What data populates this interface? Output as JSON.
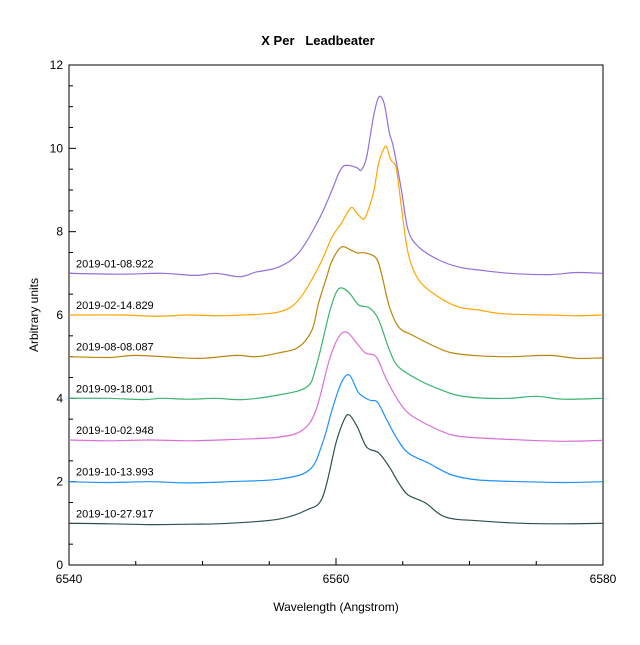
{
  "chart_data": {
    "type": "line",
    "title": "X Per   Leadbeater",
    "xlabel": "Wavelength (Angstrom)",
    "ylabel": "Arbitrary units",
    "xlim": [
      6540,
      6580
    ],
    "ylim": [
      0,
      12
    ],
    "xticks": [
      "6540",
      "6560",
      "6580"
    ],
    "yticks": [
      "0",
      "2",
      "4",
      "6",
      "8",
      "10",
      "12"
    ],
    "grid": false,
    "legend": "inline labels at left above each spectrum",
    "series": [
      {
        "name": "2019-01-08.922",
        "color": "#9370db",
        "points": [
          [
            6540,
            7.0
          ],
          [
            6544,
            6.98
          ],
          [
            6547,
            7.0
          ],
          [
            6549.5,
            6.95
          ],
          [
            6551,
            7.0
          ],
          [
            6552.8,
            6.92
          ],
          [
            6554,
            7.03
          ],
          [
            6555.7,
            7.15
          ],
          [
            6557.2,
            7.49
          ],
          [
            6558.7,
            8.28
          ],
          [
            6559.7,
            9.0
          ],
          [
            6560.2,
            9.4
          ],
          [
            6560.6,
            9.58
          ],
          [
            6561.1,
            9.58
          ],
          [
            6561.6,
            9.53
          ],
          [
            6561.9,
            9.48
          ],
          [
            6562.3,
            9.8
          ],
          [
            6562.8,
            10.75
          ],
          [
            6563.2,
            11.23
          ],
          [
            6563.6,
            11.08
          ],
          [
            6564.0,
            10.37
          ],
          [
            6564.3,
            10.03
          ],
          [
            6564.9,
            9.0
          ],
          [
            6565.4,
            8.04
          ],
          [
            6566.2,
            7.63
          ],
          [
            6567.7,
            7.32
          ],
          [
            6569.2,
            7.15
          ],
          [
            6570.7,
            7.08
          ],
          [
            6573,
            7.0
          ],
          [
            6576,
            6.97
          ],
          [
            6578,
            7.02
          ],
          [
            6580,
            7.0
          ]
        ]
      },
      {
        "name": "2019-02-14.829",
        "color": "#ffa500",
        "points": [
          [
            6540,
            6.0
          ],
          [
            6544,
            6.0
          ],
          [
            6546.5,
            5.97
          ],
          [
            6549,
            6.0
          ],
          [
            6551,
            5.98
          ],
          [
            6553,
            6.0
          ],
          [
            6555.7,
            6.07
          ],
          [
            6557.2,
            6.36
          ],
          [
            6558.7,
            7.15
          ],
          [
            6559.7,
            7.87
          ],
          [
            6560.4,
            8.2
          ],
          [
            6561.1,
            8.57
          ],
          [
            6561.5,
            8.47
          ],
          [
            6561.9,
            8.33
          ],
          [
            6562.2,
            8.35
          ],
          [
            6562.8,
            8.93
          ],
          [
            6563.2,
            9.65
          ],
          [
            6563.6,
            10.0
          ],
          [
            6563.8,
            10.03
          ],
          [
            6564.1,
            9.72
          ],
          [
            6564.5,
            9.53
          ],
          [
            6564.9,
            8.6
          ],
          [
            6565.4,
            7.49
          ],
          [
            6566.2,
            6.84
          ],
          [
            6567.7,
            6.43
          ],
          [
            6569.2,
            6.19
          ],
          [
            6570.7,
            6.12
          ],
          [
            6572.5,
            6.03
          ],
          [
            6576,
            6.0
          ],
          [
            6578,
            5.98
          ],
          [
            6580,
            6.0
          ]
        ]
      },
      {
        "name": "2019-08-08.087",
        "color": "#b8860b",
        "points": [
          [
            6540,
            5.0
          ],
          [
            6543,
            4.98
          ],
          [
            6545,
            5.03
          ],
          [
            6548,
            4.98
          ],
          [
            6550,
            4.96
          ],
          [
            6552.5,
            5.03
          ],
          [
            6554,
            5.0
          ],
          [
            6555.7,
            5.09
          ],
          [
            6557.2,
            5.23
          ],
          [
            6558.2,
            5.64
          ],
          [
            6558.7,
            6.29
          ],
          [
            6559.3,
            6.91
          ],
          [
            6559.7,
            7.3
          ],
          [
            6560.4,
            7.63
          ],
          [
            6561.1,
            7.56
          ],
          [
            6561.6,
            7.49
          ],
          [
            6562.2,
            7.49
          ],
          [
            6563.0,
            7.37
          ],
          [
            6563.4,
            7.0
          ],
          [
            6564.0,
            6.2
          ],
          [
            6564.7,
            5.71
          ],
          [
            6565.7,
            5.52
          ],
          [
            6567.5,
            5.23
          ],
          [
            6568.7,
            5.09
          ],
          [
            6570.7,
            5.02
          ],
          [
            6573,
            5.0
          ],
          [
            6576,
            5.03
          ],
          [
            6578,
            4.96
          ],
          [
            6580,
            4.97
          ]
        ]
      },
      {
        "name": "2019-09-18.001",
        "color": "#3cb371",
        "points": [
          [
            6540,
            4.0
          ],
          [
            6543,
            4.0
          ],
          [
            6545.5,
            3.97
          ],
          [
            6547,
            4.0
          ],
          [
            6549,
            3.98
          ],
          [
            6551,
            4.0
          ],
          [
            6553,
            3.97
          ],
          [
            6555.7,
            4.08
          ],
          [
            6557.8,
            4.27
          ],
          [
            6558.5,
            4.75
          ],
          [
            6559.5,
            6.05
          ],
          [
            6560.0,
            6.53
          ],
          [
            6560.4,
            6.65
          ],
          [
            6561.0,
            6.53
          ],
          [
            6561.7,
            6.24
          ],
          [
            6562.5,
            6.17
          ],
          [
            6563.2,
            5.88
          ],
          [
            6564.0,
            5.16
          ],
          [
            6564.7,
            4.75
          ],
          [
            6566.2,
            4.44
          ],
          [
            6567.5,
            4.25
          ],
          [
            6569.0,
            4.08
          ],
          [
            6570.7,
            4.01
          ],
          [
            6573,
            4.0
          ],
          [
            6575,
            4.05
          ],
          [
            6577,
            3.98
          ],
          [
            6580,
            4.0
          ]
        ]
      },
      {
        "name": "2019-10-02.948",
        "color": "#da70d6",
        "points": [
          [
            6540,
            3.0
          ],
          [
            6543,
            2.98
          ],
          [
            6546,
            3.0
          ],
          [
            6549,
            2.98
          ],
          [
            6552,
            3.01
          ],
          [
            6555.7,
            3.07
          ],
          [
            6557.5,
            3.24
          ],
          [
            6558.5,
            3.72
          ],
          [
            6559.5,
            4.92
          ],
          [
            6560.2,
            5.47
          ],
          [
            6560.8,
            5.59
          ],
          [
            6561.5,
            5.35
          ],
          [
            6562.2,
            5.09
          ],
          [
            6563.0,
            5.0
          ],
          [
            6563.7,
            4.51
          ],
          [
            6564.5,
            4.03
          ],
          [
            6565.4,
            3.65
          ],
          [
            6566.9,
            3.36
          ],
          [
            6568.7,
            3.12
          ],
          [
            6570.7,
            3.05
          ],
          [
            6574,
            3.0
          ],
          [
            6577,
            2.97
          ],
          [
            6580,
            2.99
          ]
        ]
      },
      {
        "name": "2019-10-13.993",
        "color": "#1e90ff",
        "points": [
          [
            6540,
            2.0
          ],
          [
            6543,
            1.98
          ],
          [
            6546,
            2.0
          ],
          [
            6549,
            1.97
          ],
          [
            6552,
            2.0
          ],
          [
            6555.7,
            2.06
          ],
          [
            6558.0,
            2.28
          ],
          [
            6559.0,
            2.93
          ],
          [
            6559.7,
            3.72
          ],
          [
            6560.4,
            4.37
          ],
          [
            6561.0,
            4.56
          ],
          [
            6561.7,
            4.13
          ],
          [
            6562.5,
            3.96
          ],
          [
            6563.1,
            3.91
          ],
          [
            6563.7,
            3.55
          ],
          [
            6564.5,
            3.07
          ],
          [
            6565.4,
            2.69
          ],
          [
            6566.9,
            2.45
          ],
          [
            6568.7,
            2.16
          ],
          [
            6570.7,
            2.04
          ],
          [
            6574,
            2.0
          ],
          [
            6577,
            1.98
          ],
          [
            6580,
            2.0
          ]
        ]
      },
      {
        "name": "2019-10-27.917",
        "color": "#2f4f4f",
        "points": [
          [
            6540,
            1.0
          ],
          [
            6543,
            0.99
          ],
          [
            6546,
            0.97
          ],
          [
            6549,
            0.98
          ],
          [
            6552,
            1.0
          ],
          [
            6555.7,
            1.1
          ],
          [
            6557.8,
            1.32
          ],
          [
            6559.0,
            1.63
          ],
          [
            6560.0,
            2.93
          ],
          [
            6560.6,
            3.48
          ],
          [
            6561.0,
            3.6
          ],
          [
            6561.6,
            3.31
          ],
          [
            6562.3,
            2.83
          ],
          [
            6563.2,
            2.69
          ],
          [
            6564.0,
            2.35
          ],
          [
            6564.7,
            1.97
          ],
          [
            6565.4,
            1.68
          ],
          [
            6566.7,
            1.49
          ],
          [
            6568.2,
            1.15
          ],
          [
            6570.7,
            1.06
          ],
          [
            6574,
            1.0
          ],
          [
            6577,
            0.99
          ],
          [
            6580,
            1.0
          ]
        ]
      }
    ]
  }
}
